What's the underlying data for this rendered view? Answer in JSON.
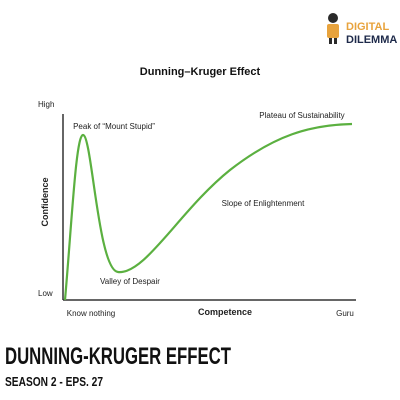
{
  "logo": {
    "line1": "DIGITAL",
    "line2": "DILEMMA"
  },
  "diagram": {
    "title": "Dunning–Kruger Effect",
    "y_label": "Confidence",
    "y_high": "High",
    "y_low": "Low",
    "x_label": "Competence",
    "x_start": "Know nothing",
    "x_end": "Guru",
    "annotations": [
      "Peak of “Mount Stupid”",
      "Valley of Despair",
      "Slope of Enlightenment",
      "Plateau of Sustainability"
    ]
  },
  "footer": {
    "title": "DUNNING-KRUGER EFFECT",
    "subtitle": "SEASON 2 - EPS. 27"
  }
}
